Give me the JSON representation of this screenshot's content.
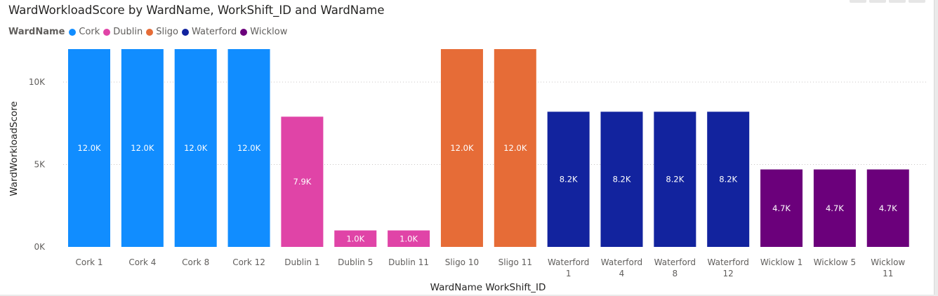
{
  "window": {
    "title": "WardWorkloadScore by WardName, WorkShift_ID and WardName"
  },
  "legend": {
    "title": "WardName",
    "items": [
      {
        "label": "Cork",
        "color": "#118dff"
      },
      {
        "label": "Dublin",
        "color": "#e044a7"
      },
      {
        "label": "Sligo",
        "color": "#e66c37"
      },
      {
        "label": "Waterford",
        "color": "#12239e"
      },
      {
        "label": "Wicklow",
        "color": "#6b007b"
      }
    ]
  },
  "chart_data": {
    "type": "bar",
    "title": "WardWorkloadScore by WardName, WorkShift_ID and WardName",
    "xlabel": "WardName WorkShift_ID",
    "ylabel": "WardWorkloadScore",
    "ylim": [
      0,
      12000
    ],
    "yticks": [
      "0K",
      "5K",
      "10K"
    ],
    "grid": true,
    "legend_placement": "top-left",
    "categories": [
      "Cork 1",
      "Cork 4",
      "Cork 8",
      "Cork 12",
      "Dublin 1",
      "Dublin 5",
      "Dublin 11",
      "Sligo 10",
      "Sligo 11",
      "Waterford 1",
      "Waterford 4",
      "Waterford 8",
      "Waterford 12",
      "Wicklow 1",
      "Wicklow 5",
      "Wicklow 11"
    ],
    "series_of_category": [
      "Cork",
      "Cork",
      "Cork",
      "Cork",
      "Dublin",
      "Dublin",
      "Dublin",
      "Sligo",
      "Sligo",
      "Waterford",
      "Waterford",
      "Waterford",
      "Waterford",
      "Wicklow",
      "Wicklow",
      "Wicklow"
    ],
    "values": [
      12000,
      12000,
      12000,
      12000,
      7900,
      1000,
      1000,
      12000,
      12000,
      8200,
      8200,
      8200,
      8200,
      4700,
      4700,
      4700
    ],
    "data_labels": [
      "12.0K",
      "12.0K",
      "12.0K",
      "12.0K",
      "7.9K",
      "1.0K",
      "1.0K",
      "12.0K",
      "12.0K",
      "8.2K",
      "8.2K",
      "8.2K",
      "8.2K",
      "4.7K",
      "4.7K",
      "4.7K"
    ]
  }
}
